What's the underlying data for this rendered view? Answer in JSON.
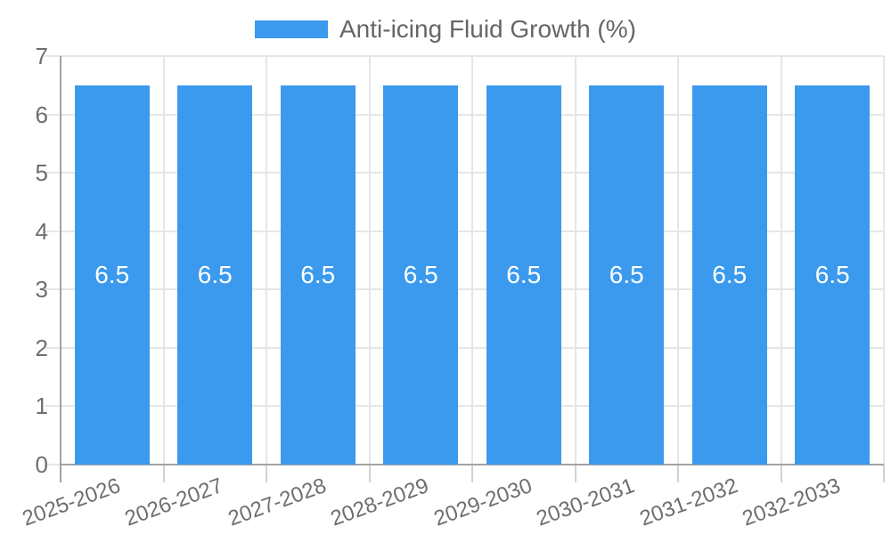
{
  "legend": {
    "label": "Anti-icing Fluid Growth (%)"
  },
  "chart_data": {
    "type": "bar",
    "title": "",
    "xlabel": "",
    "ylabel": "",
    "categories": [
      "2025-2026",
      "2026-2027",
      "2027-2028",
      "2028-2029",
      "2029-2030",
      "2030-2031",
      "2031-2032",
      "2032-2033"
    ],
    "series": [
      {
        "name": "Anti-icing Fluid Growth (%)",
        "values": [
          6.5,
          6.5,
          6.5,
          6.5,
          6.5,
          6.5,
          6.5,
          6.5
        ],
        "bar_labels": [
          "6.5",
          "6.5",
          "6.5",
          "6.5",
          "6.5",
          "6.5",
          "6.5",
          "6.5"
        ]
      }
    ],
    "ylim": [
      0,
      7
    ],
    "yticks": [
      0,
      1,
      2,
      3,
      4,
      5,
      6,
      7
    ],
    "grid": true,
    "legend_position": "top"
  },
  "colors": {
    "bar": "#3B9AED",
    "grid": "#e6e6e6",
    "axis": "#a3a3a3",
    "boundary_tick": "#d2d2d2",
    "tick_label": "#6e6e6e",
    "legend_text": "#666666",
    "bar_label": "#ffffff",
    "background": "#ffffff"
  }
}
